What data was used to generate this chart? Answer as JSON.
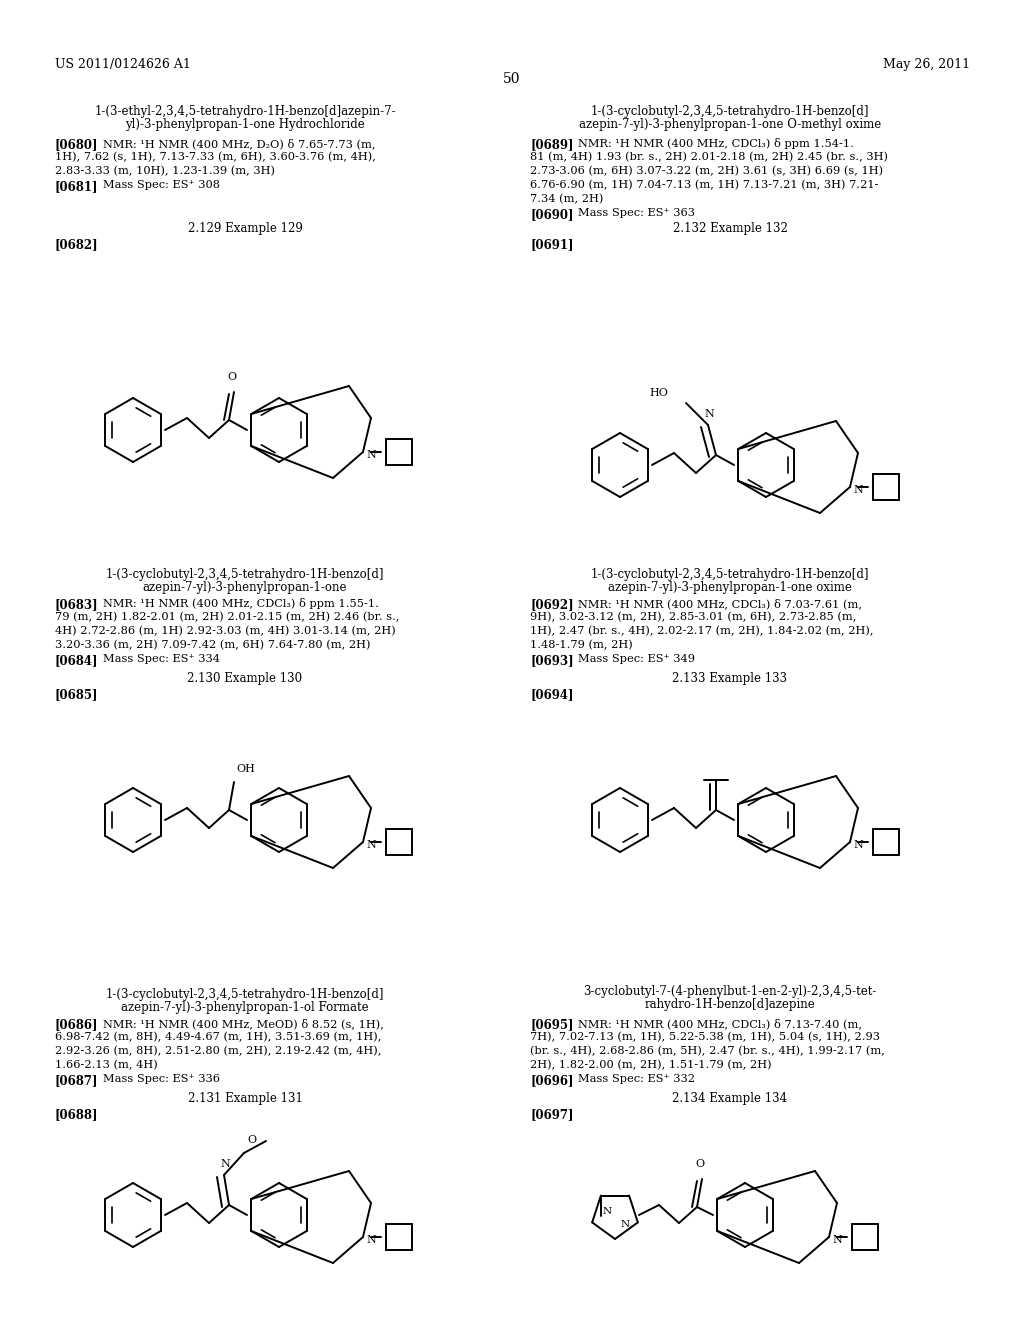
{
  "bg": "#ffffff",
  "header_left": "US 2011/0124626 A1",
  "header_right": "May 26, 2011",
  "page_num": "50"
}
